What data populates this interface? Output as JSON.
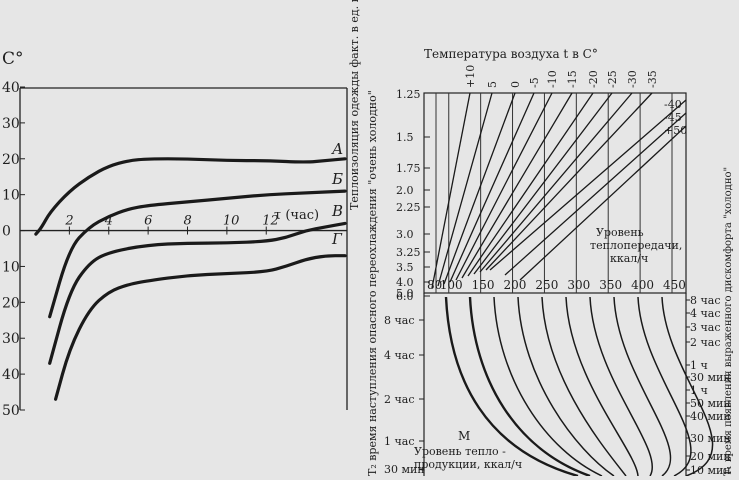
{
  "left_chart": {
    "y_unit": "C°",
    "y_ticks": [
      "40",
      "30",
      "20",
      "10",
      "0",
      "10",
      "20",
      "30",
      "40",
      "50"
    ],
    "x_ticks": [
      "2",
      "4",
      "6",
      "8",
      "10",
      "12"
    ],
    "x_label": "τ (час)"
  },
  "chart_data": [
    {
      "type": "line",
      "ylim": [
        -50,
        40
      ],
      "xlim": [
        0,
        16
      ],
      "series": [
        {
          "name": "А",
          "points": [
            [
              0.3,
              -1
            ],
            [
              0.6,
              1
            ],
            [
              1,
              5
            ],
            [
              2,
              11
            ],
            [
              3,
              15
            ],
            [
              4,
              18
            ],
            [
              5,
              19.5
            ],
            [
              6,
              20
            ],
            [
              8,
              20
            ],
            [
              10,
              19.5
            ],
            [
              12,
              19.5
            ],
            [
              14,
              19
            ],
            [
              15,
              19.5
            ],
            [
              16,
              20
            ]
          ]
        },
        {
          "name": "Б",
          "points": [
            [
              1,
              -24
            ],
            [
              2,
              -5
            ],
            [
              3,
              1
            ],
            [
              4,
              4
            ],
            [
              5,
              6
            ],
            [
              6,
              7
            ],
            [
              8,
              8
            ],
            [
              10,
              9
            ],
            [
              12,
              10
            ],
            [
              14,
              10.5
            ],
            [
              16,
              11
            ]
          ]
        },
        {
          "name": "В",
          "points": [
            [
              1,
              -37
            ],
            [
              2,
              -17
            ],
            [
              3,
              -9
            ],
            [
              4,
              -6
            ],
            [
              6,
              -4
            ],
            [
              8,
              -3.5
            ],
            [
              10,
              -3.5
            ],
            [
              12,
              -3
            ],
            [
              13,
              -2
            ],
            [
              14,
              0
            ],
            [
              15,
              1
            ],
            [
              16,
              2
            ]
          ]
        },
        {
          "name": "Г",
          "points": [
            [
              1.3,
              -47
            ],
            [
              2,
              -33
            ],
            [
              3,
              -22
            ],
            [
              4,
              -17
            ],
            [
              5,
              -15
            ],
            [
              6,
              -14
            ],
            [
              8,
              -12.5
            ],
            [
              10,
              -12
            ],
            [
              12,
              -11.5
            ],
            [
              13,
              -10
            ],
            [
              14,
              -8
            ],
            [
              15,
              -7
            ],
            [
              16,
              -7
            ]
          ]
        }
      ]
    },
    {
      "type": "line",
      "title": "Температура воздуха t в C°",
      "temperature_labels_top": [
        "+10",
        "5",
        "0",
        "-5",
        "-10",
        "-15",
        "-20",
        "-25",
        "-30",
        "-35"
      ],
      "temperature_labels_right": [
        "-40",
        "-45",
        "+50"
      ],
      "y_label": "Теплоизоляция одежды факт. в ед. кло",
      "y_ticks": [
        "1.25",
        "1.5",
        "1.75",
        "2.0",
        "2.25",
        "3.0",
        "3.25",
        "3.5",
        "4.0",
        "5.0",
        "6.0"
      ],
      "x_ticks": [
        "80",
        "100",
        "150",
        "200",
        "250",
        "300",
        "350",
        "400",
        "450"
      ],
      "x_label": "Уровень теплопередачи, ккал/ч"
    },
    {
      "type": "line",
      "left_axis_label": "T₂ время наступления опасного переохлаждения \"очень холодно\"",
      "left_ticks": [
        "8 час",
        "4 час",
        "2 час",
        "1 час",
        "30 мин"
      ],
      "right_axis_label": "T₁ время появления выраженного дискомфорта \"холодно\"",
      "right_ticks": [
        "8 час",
        "4 час",
        "3 час",
        "2 час",
        "1 ч",
        "30 мин",
        "1 ч",
        "50 мин",
        "40 мин",
        "30 мин",
        "20 мин",
        "10 мин"
      ],
      "x_label": "Уровень тепло-продукции, ккал/ч",
      "marker": "M"
    }
  ],
  "curve_letters": [
    "А",
    "Б",
    "В",
    "Г"
  ]
}
